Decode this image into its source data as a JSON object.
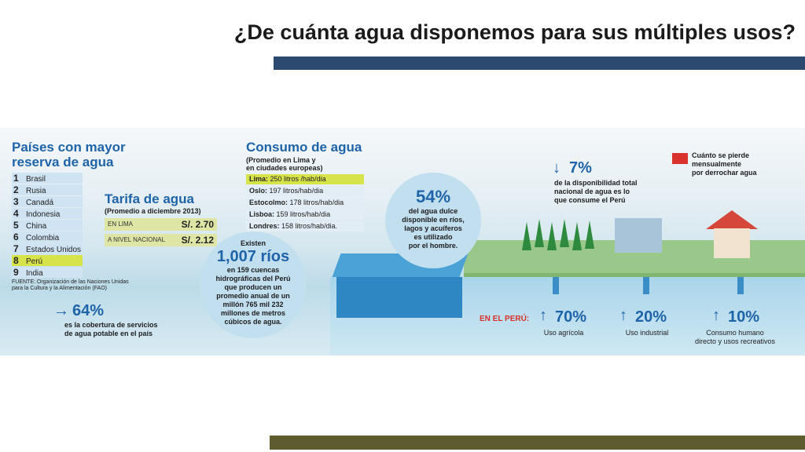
{
  "title": "¿De cuánta agua disponemos para sus múltiples usos?",
  "colors": {
    "blue_bar": "#2c4a70",
    "olive_bar": "#5e5c2e",
    "accent_blue": "#1f64a8",
    "highlight": "#d7e34a"
  },
  "paises": {
    "heading_1": "Países con mayor",
    "heading_2": "reserva de agua",
    "items": [
      {
        "n": "1",
        "name": "Brasil"
      },
      {
        "n": "2",
        "name": "Rusia"
      },
      {
        "n": "3",
        "name": "Canadá"
      },
      {
        "n": "4",
        "name": "Indonesia"
      },
      {
        "n": "5",
        "name": "China"
      },
      {
        "n": "6",
        "name": "Colombia"
      },
      {
        "n": "7",
        "name": "Estados Unidos"
      },
      {
        "n": "8",
        "name": "Perú"
      },
      {
        "n": "9",
        "name": "India"
      }
    ],
    "fuente_1": "FUENTE: Organización de las Naciones Unidas",
    "fuente_2": "para la Cultura y la Alimentación (FAO)"
  },
  "tarifa": {
    "heading": "Tarifa de agua",
    "sub": "(Promedio a diciembre 2013)",
    "rows": [
      {
        "label": "EN LIMA",
        "value": "S/. 2.70"
      },
      {
        "label": "A NIVEL NACIONAL",
        "value": "S/. 2.12"
      }
    ]
  },
  "cobertura": {
    "value": "64%",
    "text_1": "es la cobertura de servicios",
    "text_2": "de agua potable en el país"
  },
  "consumo": {
    "heading": "Consumo de agua",
    "sub_1": "(Promedio en Lima y",
    "sub_2": "en ciudades europeas)",
    "rows": [
      {
        "city": "Lima:",
        "value": "250 litros /hab/dia"
      },
      {
        "city": "Oslo:",
        "value": "197 litros/hab/dia"
      },
      {
        "city": "Estocolmo:",
        "value": "178 litros/hab/dia"
      },
      {
        "city": "Lisboa:",
        "value": "159 litros/hab/dia"
      },
      {
        "city": "Londres:",
        "value": "158 litros/hab/dia."
      }
    ]
  },
  "rios": {
    "pre": "Existen",
    "value": "1,007 ríos",
    "lines": [
      "en 159 cuencas",
      "hidrográficas del Perú",
      "que producen un",
      "promedio anual de un",
      "millón 765 mil 232",
      "millones de metros",
      "cúbicos de agua."
    ]
  },
  "dulce": {
    "value": "54%",
    "lines": [
      "del agua dulce",
      "disponible en ríos,",
      "lagos y acuíferos",
      "es utilizado",
      "por el hombre."
    ]
  },
  "disponibilidad": {
    "value": "7%",
    "lines": [
      "de la disponibilidad total",
      "nacional de agua es lo",
      "que consume el Perú"
    ]
  },
  "pierde": {
    "line_1": "Cuánto se pierde",
    "line_2": "mensualmente",
    "line_3": "por derrochar agua"
  },
  "usos": {
    "label": "EN EL PERÚ:",
    "items": [
      {
        "value": "70%",
        "line_1": "Uso agrícola",
        "line_2": ""
      },
      {
        "value": "20%",
        "line_1": "Uso industrial",
        "line_2": ""
      },
      {
        "value": "10%",
        "line_1": "Consumo humano",
        "line_2": "directo y usos recreativos"
      }
    ]
  }
}
